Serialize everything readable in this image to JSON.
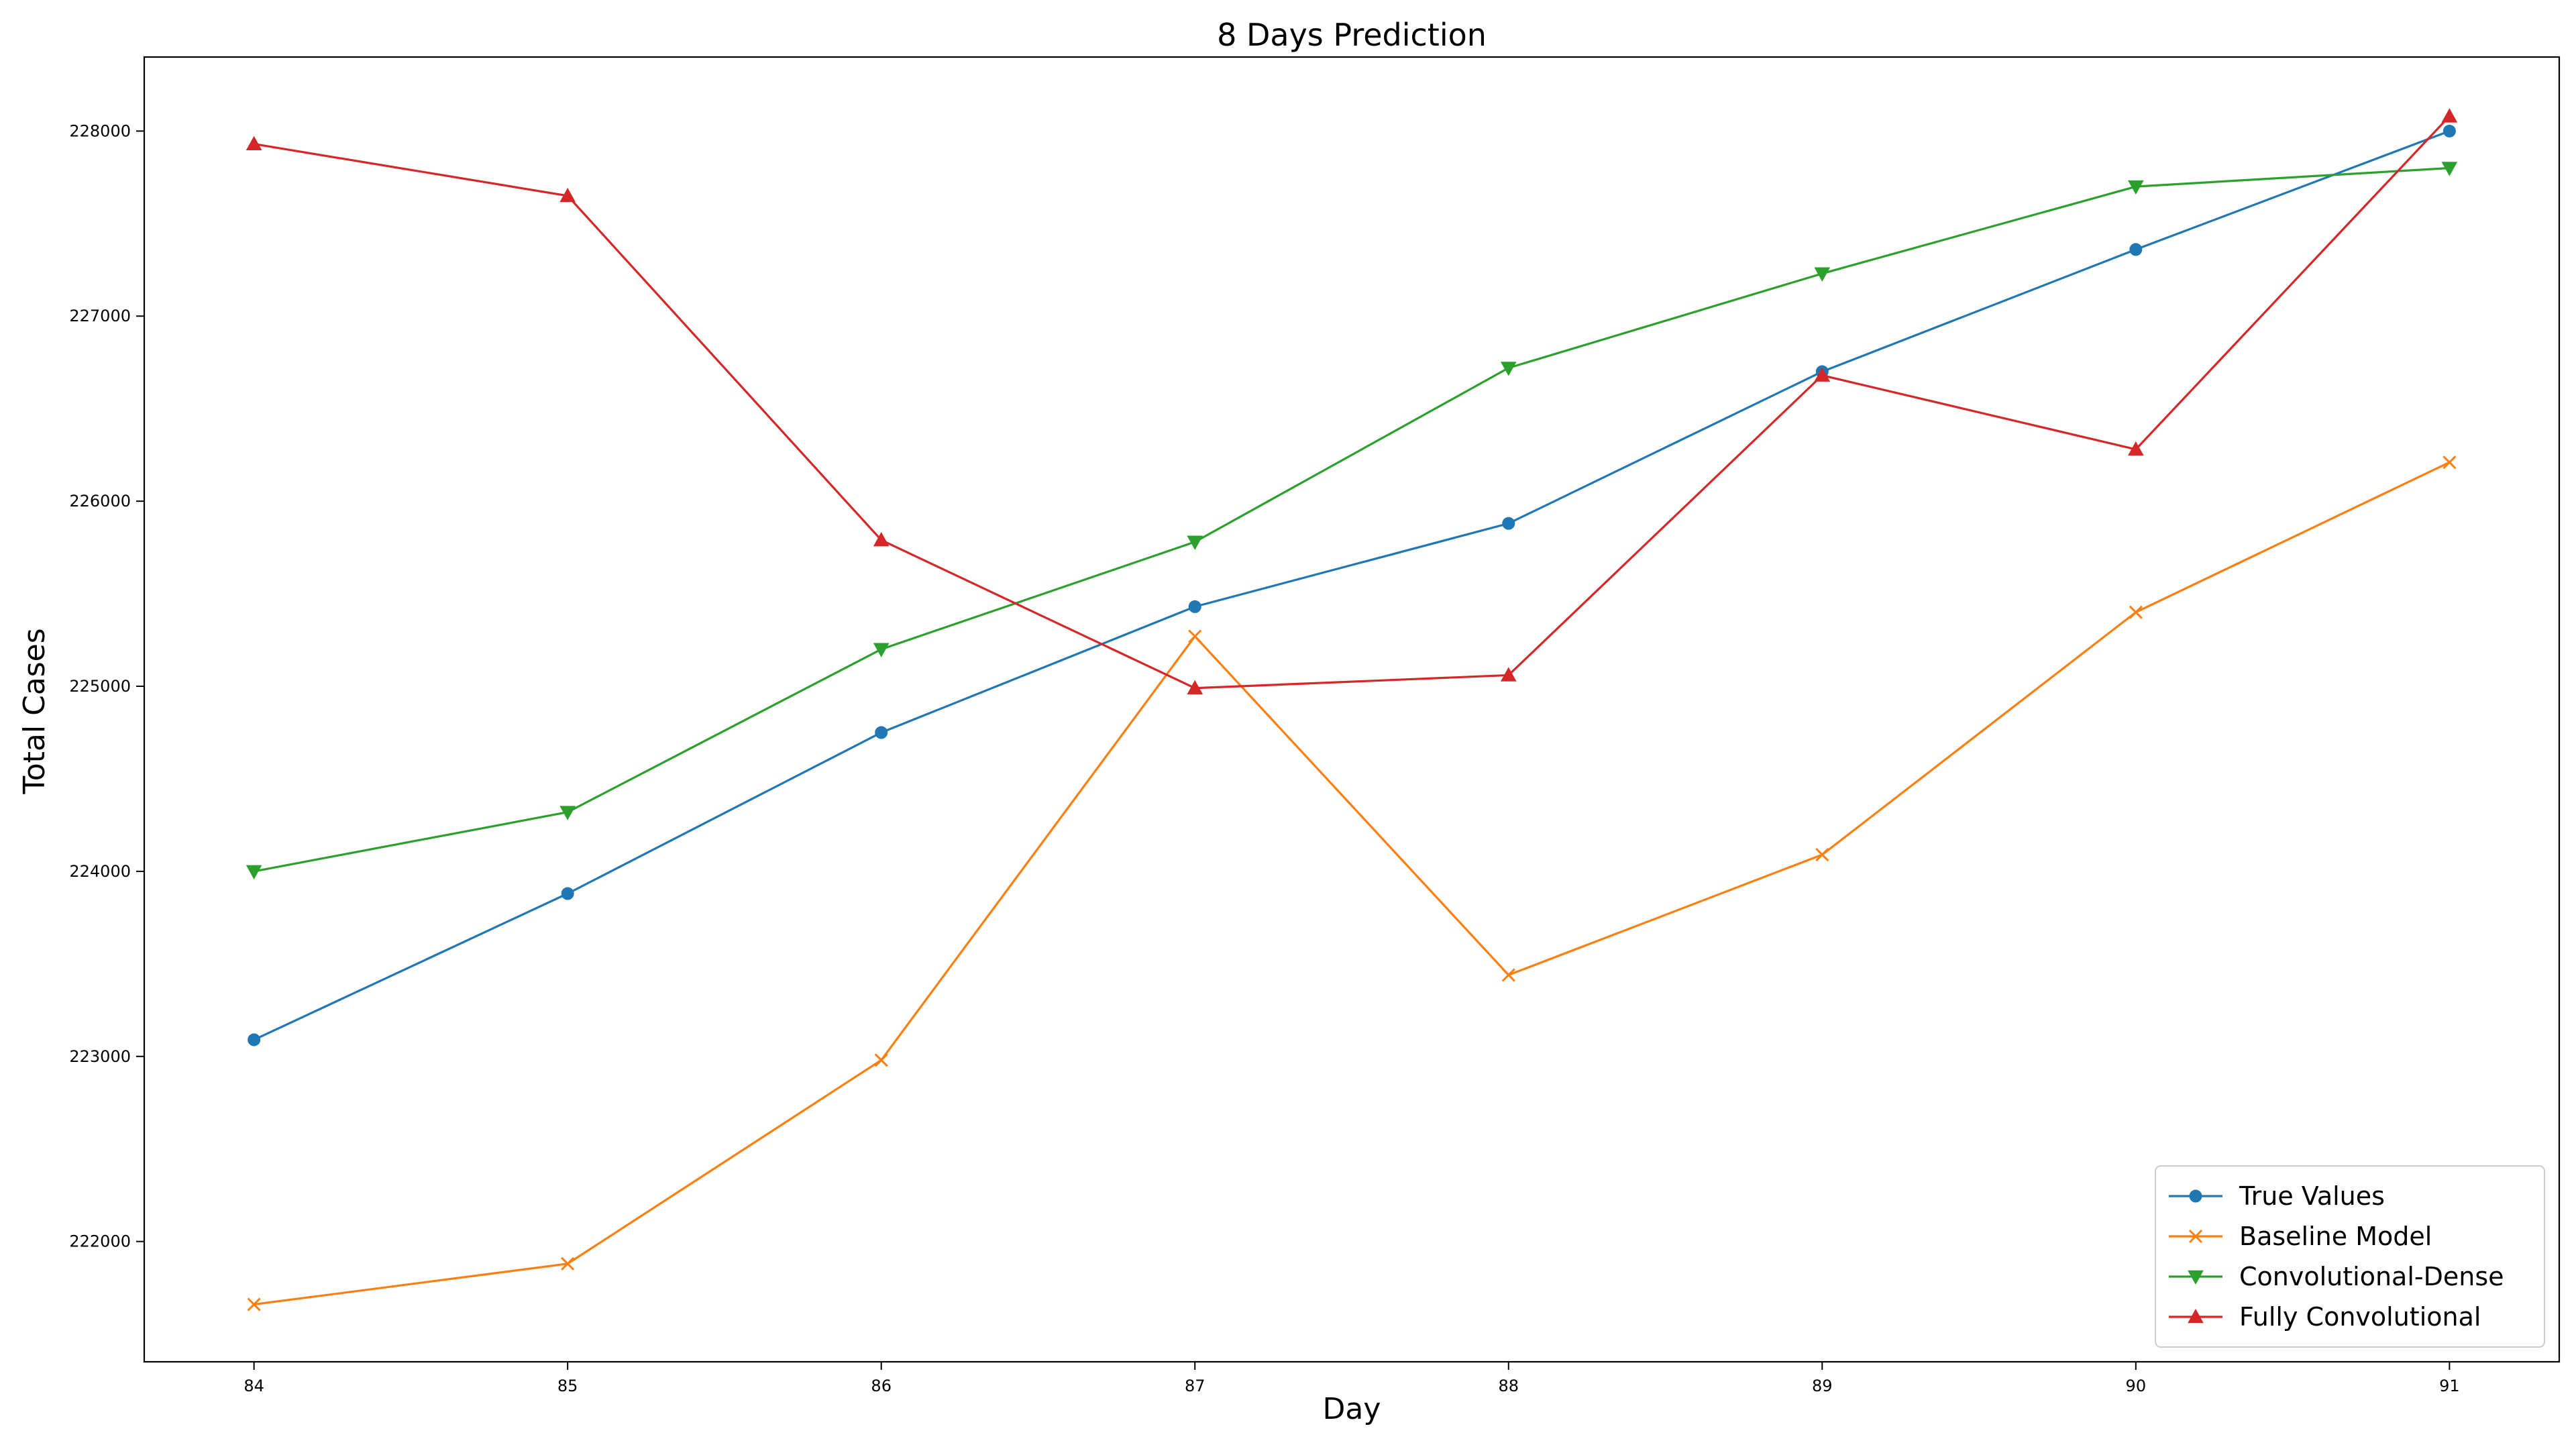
{
  "chart_data": {
    "type": "line",
    "title": "8 Days Prediction",
    "xlabel": "Day",
    "ylabel": "Total Cases",
    "x": [
      84,
      85,
      86,
      87,
      88,
      89,
      90,
      91
    ],
    "xlim": [
      83.65,
      91.35
    ],
    "ylim": [
      221350,
      228400
    ],
    "yticks": [
      222000,
      223000,
      224000,
      225000,
      226000,
      227000,
      228000
    ],
    "grid": false,
    "legend_position": "lower-right",
    "series": [
      {
        "name": "True Values",
        "color": "#1f77b4",
        "marker": "circle",
        "values": [
          223090,
          223880,
          224750,
          225430,
          225880,
          226700,
          227360,
          228000
        ]
      },
      {
        "name": "Baseline Model",
        "color": "#ff7f0e",
        "marker": "x",
        "values": [
          221660,
          221880,
          222980,
          225270,
          223440,
          224090,
          225400,
          226210
        ]
      },
      {
        "name": "Convolutional-Dense",
        "color": "#2ca02c",
        "marker": "triangle-down",
        "values": [
          224000,
          224320,
          225200,
          225780,
          226720,
          227230,
          227700,
          227800
        ]
      },
      {
        "name": "Fully Convolutional",
        "color": "#d62728",
        "marker": "triangle-up",
        "values": [
          227930,
          227650,
          225790,
          224990,
          225060,
          226680,
          226280,
          228080
        ]
      }
    ]
  }
}
